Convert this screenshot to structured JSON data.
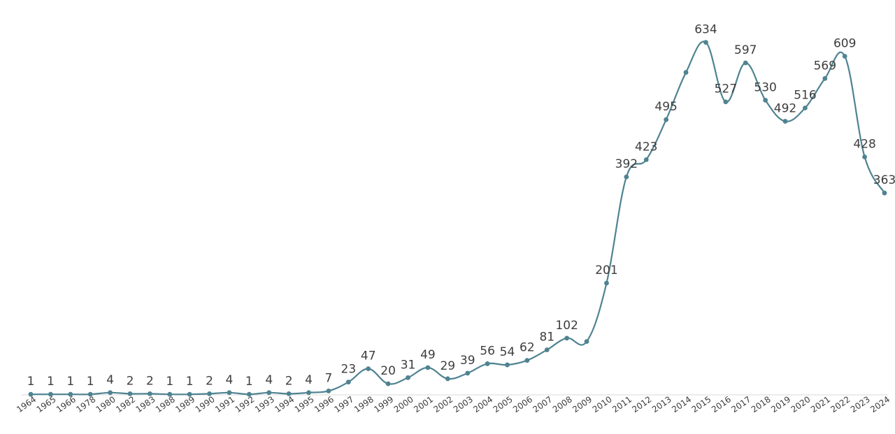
{
  "colors": {
    "series": "#4f8391",
    "text": "#3d3d3d",
    "axis": "#d9d9d9"
  },
  "chart_data": {
    "type": "line",
    "title": "",
    "xlabel": "",
    "ylabel": "",
    "smooth": true,
    "grid": false,
    "legend": "none",
    "ylim": [
      0,
      680
    ],
    "categories": [
      "1964",
      "1965",
      "1966",
      "1978",
      "1980",
      "1982",
      "1983",
      "1988",
      "1989",
      "1990",
      "1991",
      "1992",
      "1993",
      "1994",
      "1995",
      "1996",
      "1997",
      "1998",
      "1999",
      "2000",
      "2001",
      "2002",
      "2003",
      "2004",
      "2005",
      "2006",
      "2007",
      "2008",
      "2009",
      "2010",
      "2011",
      "2012",
      "2013",
      "2014",
      "2015",
      "2016",
      "2017",
      "2018",
      "2019",
      "2020",
      "2021",
      "2022",
      "2023",
      "2024"
    ],
    "series": [
      {
        "values": [
          1,
          1,
          1,
          1,
          4,
          2,
          2,
          1,
          1,
          2,
          4,
          1,
          4,
          2,
          4,
          7,
          23,
          47,
          20,
          31,
          49,
          29,
          39,
          56,
          54,
          62,
          81,
          102,
          null,
          201,
          392,
          423,
          495,
          null,
          634,
          527,
          597,
          530,
          492,
          516,
          569,
          609,
          428,
          363
        ],
        "points": [
          1,
          1,
          1,
          1,
          4,
          2,
          2,
          1,
          1,
          2,
          4,
          1,
          4,
          2,
          4,
          7,
          23,
          47,
          20,
          31,
          49,
          29,
          39,
          56,
          54,
          62,
          81,
          102,
          96,
          201,
          392,
          423,
          495,
          580,
          634,
          527,
          597,
          530,
          492,
          516,
          569,
          609,
          428,
          363
        ]
      }
    ]
  }
}
